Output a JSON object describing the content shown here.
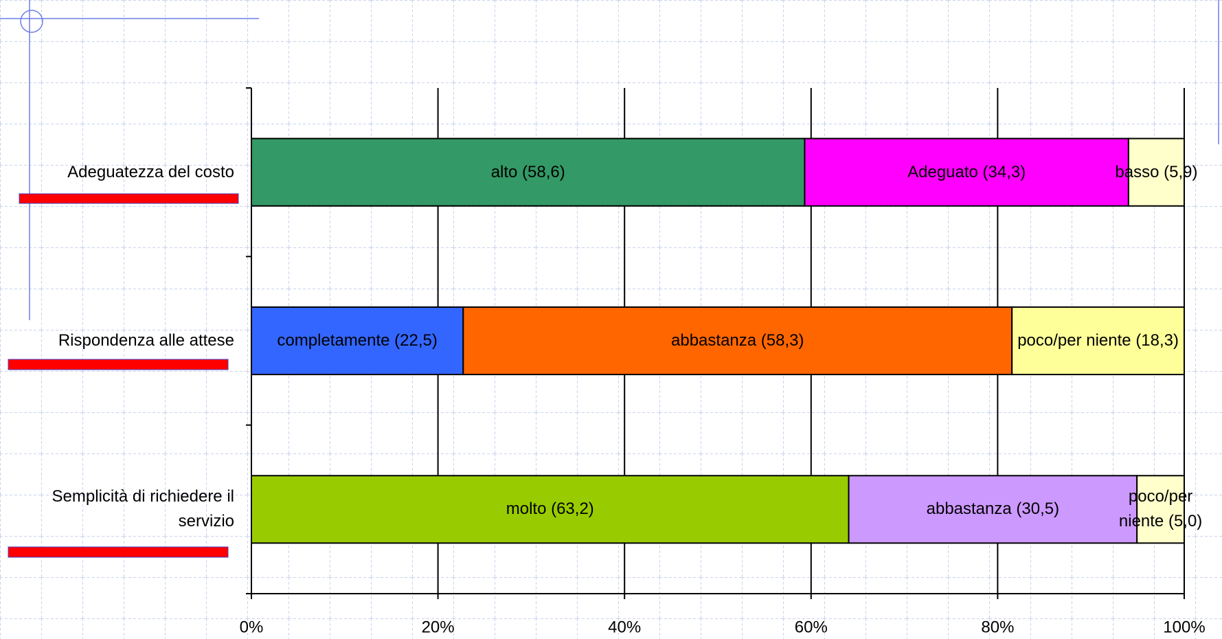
{
  "chart_data": {
    "type": "bar",
    "orientation": "horizontal",
    "stacking": "percent",
    "categories": [
      "Adeguatezza del costo",
      "Rispondenza alle attese",
      "Semplicità di richiedere il servizio"
    ],
    "rows": [
      {
        "segments": [
          {
            "label": "alto (58,6)",
            "value": 58.6,
            "color": "#339966"
          },
          {
            "label": "Adeguato (34,3)",
            "value": 34.3,
            "color": "#ff00ff"
          },
          {
            "label": "basso (5,9)",
            "value": 5.9,
            "color": "#ffffcc"
          }
        ]
      },
      {
        "segments": [
          {
            "label": "completamente (22,5)",
            "value": 22.5,
            "color": "#3366ff"
          },
          {
            "label": "abbastanza (58,3)",
            "value": 58.3,
            "color": "#ff6600"
          },
          {
            "label": "poco/per niente (18,3)",
            "value": 18.3,
            "color": "#ffff99"
          }
        ]
      },
      {
        "segments": [
          {
            "label": "molto (63,2)",
            "value": 63.2,
            "color": "#99cc00"
          },
          {
            "label": "abbastanza (30,5)",
            "value": 30.5,
            "color": "#cc99ff"
          },
          {
            "label": "poco/per niente (5,0)",
            "value": 5.0,
            "color": "#ffffcc"
          }
        ]
      }
    ],
    "xlim": [
      0,
      100
    ],
    "xticks": [
      {
        "value": 0,
        "label": "0%"
      },
      {
        "value": 20,
        "label": "20%"
      },
      {
        "value": 40,
        "label": "40%"
      },
      {
        "value": 60,
        "label": "60%"
      },
      {
        "value": 80,
        "label": "80%"
      },
      {
        "value": 100,
        "label": "100%"
      }
    ],
    "grid": true
  }
}
